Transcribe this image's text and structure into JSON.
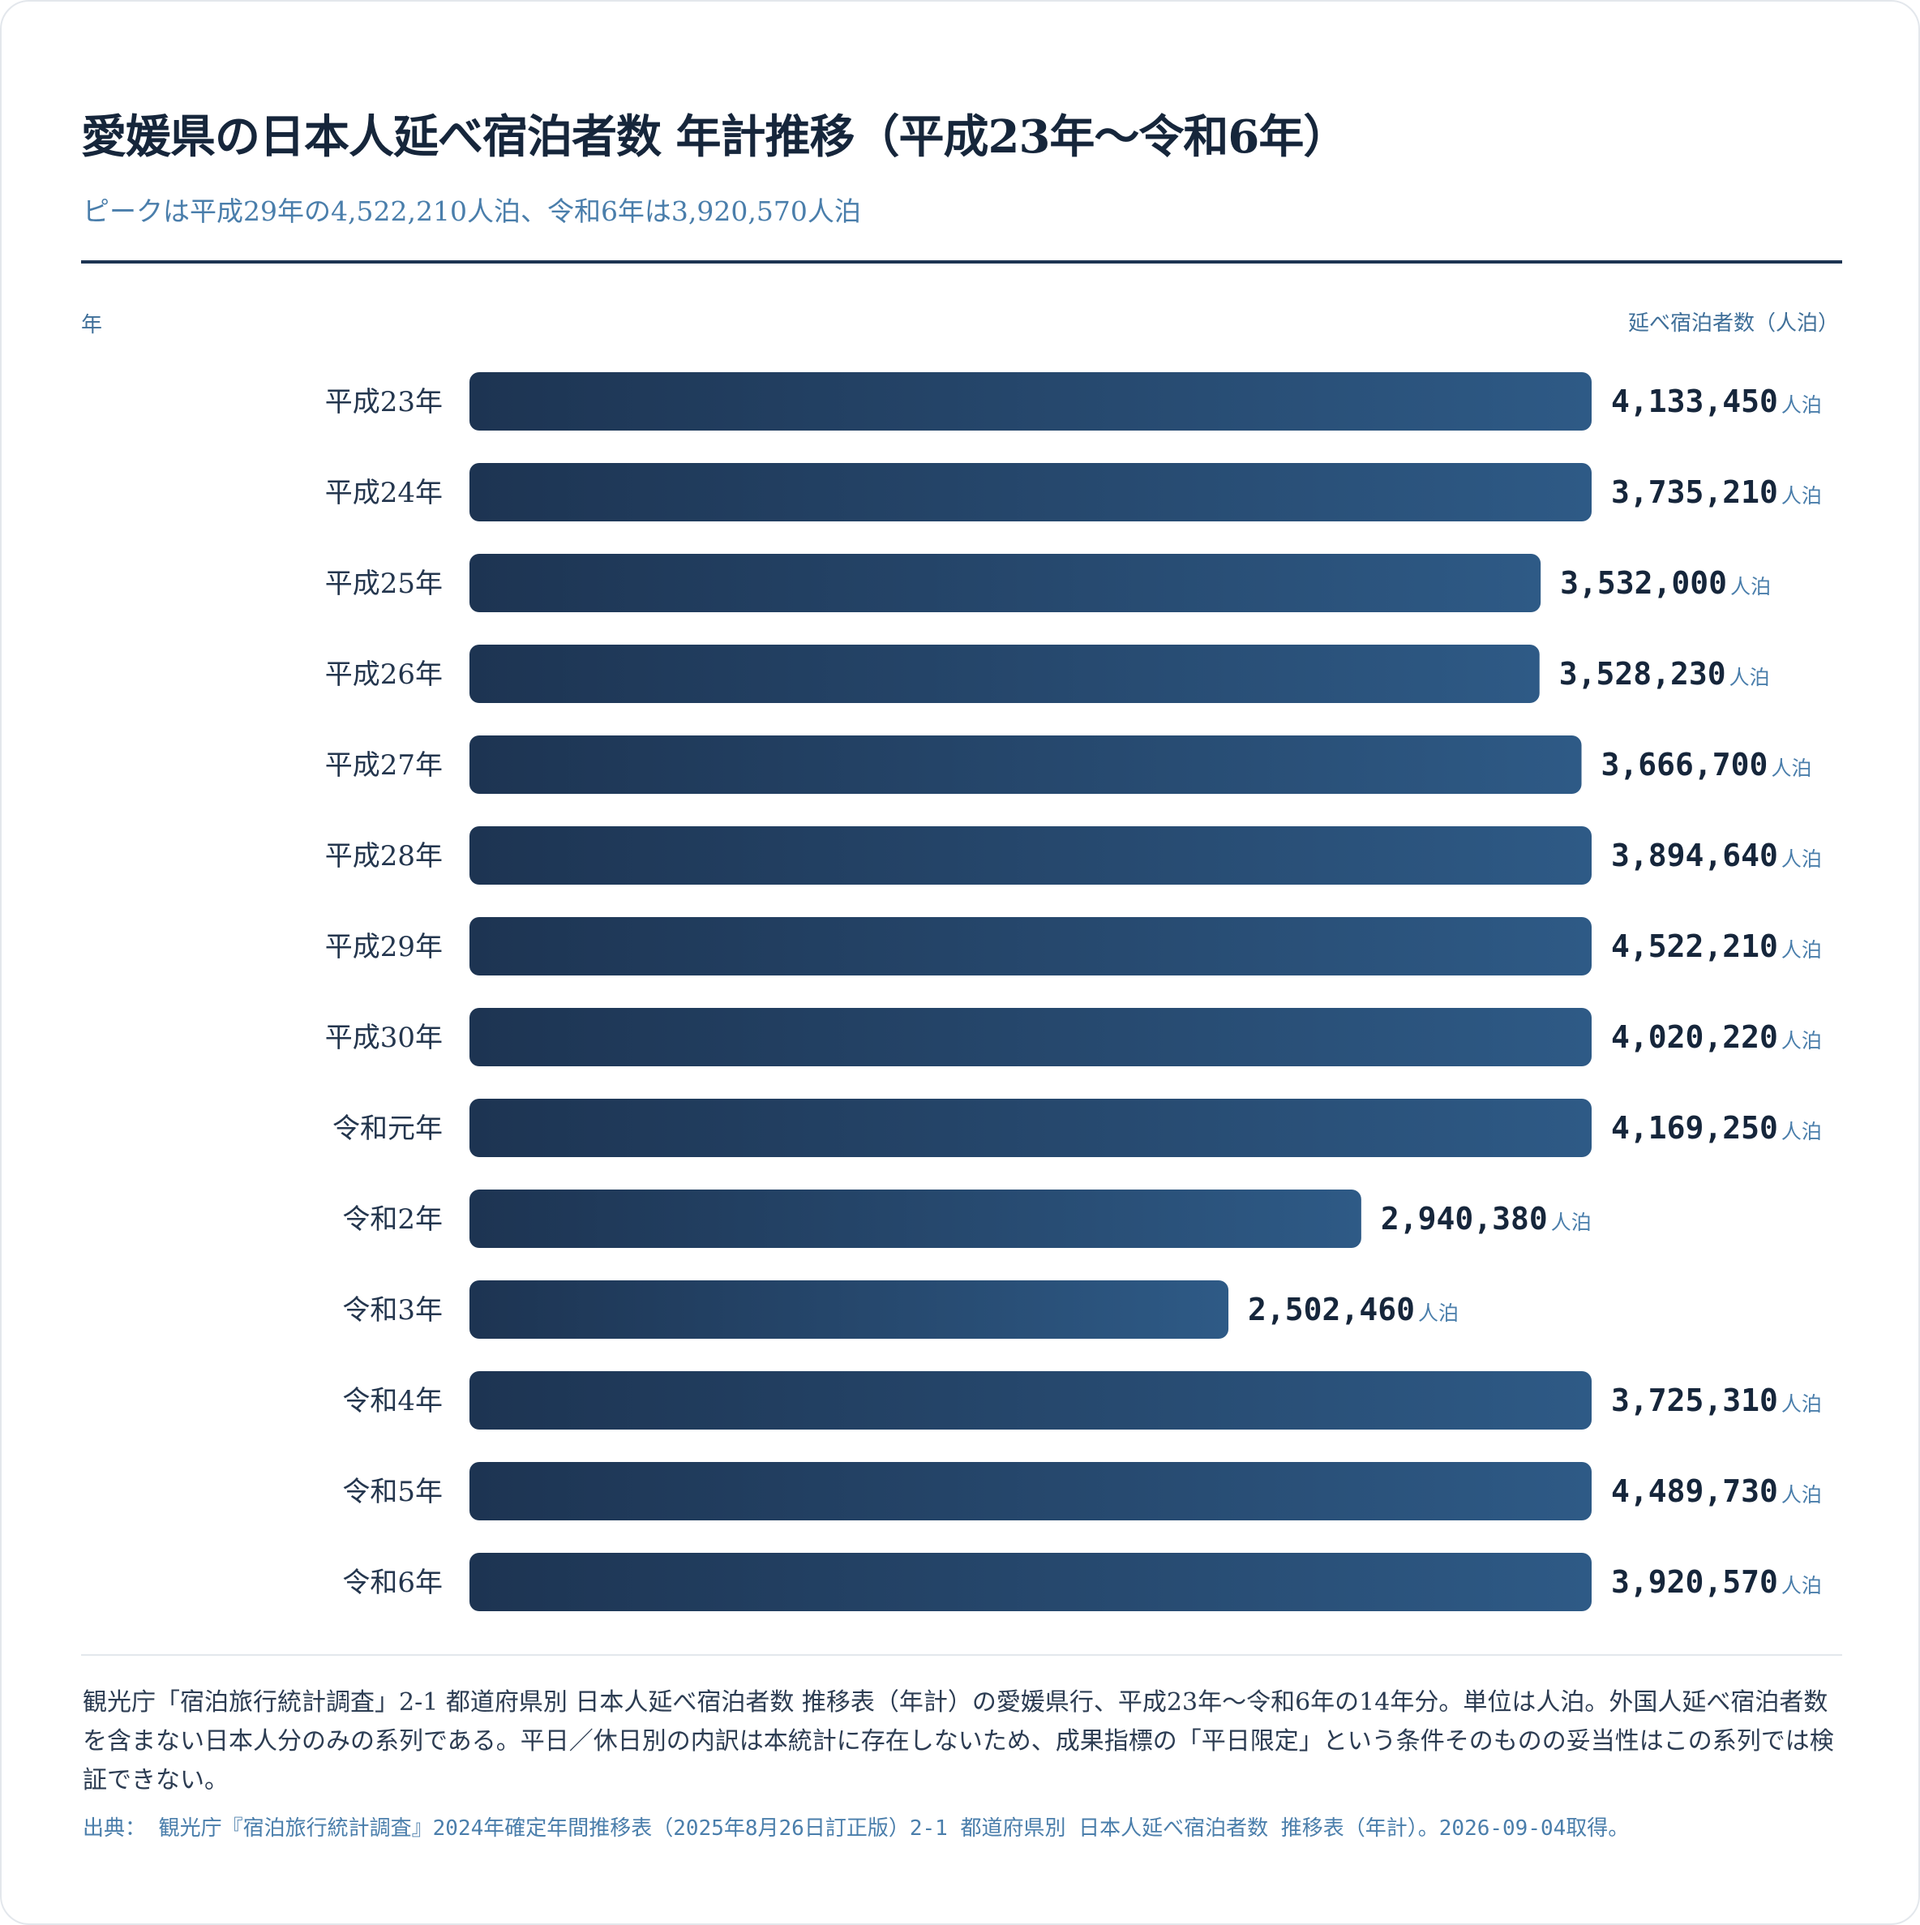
{
  "title": "愛媛県の日本人延べ宿泊者数 年計推移（平成23年〜令和6年）",
  "subtitle": "ピークは平成29年の4,522,210人泊、令和6年は3,920,570人泊",
  "axis": {
    "left_label": "年",
    "right_label": "延べ宿泊者数（人泊）"
  },
  "chart_data": {
    "type": "bar",
    "orientation": "horizontal",
    "categories": [
      "平成23年",
      "平成24年",
      "平成25年",
      "平成26年",
      "平成27年",
      "平成28年",
      "平成29年",
      "平成30年",
      "令和元年",
      "令和2年",
      "令和3年",
      "令和4年",
      "令和5年",
      "令和6年"
    ],
    "values": [
      4133450,
      3735210,
      3532000,
      3528230,
      3666700,
      3894640,
      4522210,
      4020220,
      4169250,
      2940380,
      2502460,
      3725310,
      4489730,
      3920570
    ],
    "value_labels": [
      "4,133,450",
      "3,735,210",
      "3,532,000",
      "3,528,230",
      "3,666,700",
      "3,894,640",
      "4,522,210",
      "4,020,220",
      "4,169,250",
      "2,940,380",
      "2,502,460",
      "3,725,310",
      "4,489,730",
      "3,920,570"
    ],
    "unit": "人泊",
    "xlim": [
      0,
      3700000
    ],
    "bar_color_start": "#1d3452",
    "bar_color_end": "#2e5a86"
  },
  "footer": {
    "note": "観光庁「宿泊旅行統計調査」2-1 都道府県別 日本人延べ宿泊者数 推移表（年計）の愛媛県行、平成23年〜令和6年の14年分。単位は人泊。外国人延べ宿泊者数を含まない日本人分のみの系列である。平日／休日別の内訳は本統計に存在しないため、成果指標の「平日限定」という条件そのものの妥当性はこの系列では検証できない。",
    "source": "出典： 観光庁『宿泊旅行統計調査』2024年確定年間推移表（2025年8月26日訂正版）2-1 都道府県別 日本人延べ宿泊者数 推移表（年計）。2026-09-04取得。"
  }
}
